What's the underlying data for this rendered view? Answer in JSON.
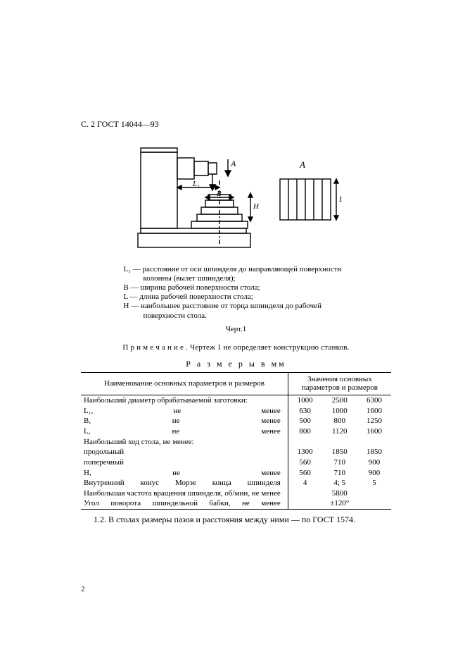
{
  "header": "С. 2 ГОСТ 14044—93",
  "legend": {
    "l1": "L₁ — расстояние от оси шпинделя до направляющей поверхности колонны (вылет шпинделя);",
    "b": "B — ширина рабочей поверхности стола;",
    "l": "L — длина рабочей поверхности стола;",
    "h": "H — наибольшее расстояние от торца шпинделя до рабочей поверхности стола."
  },
  "fig_label": "Черт.1",
  "note": "П р и м е ч а н и е . Чертеж 1 не определяет конструкцию станков.",
  "table_title": "Р а з м е р ы   в мм",
  "table": {
    "head_left": "Наименование основных параметров и размеров",
    "head_right": "Значения основных параметров и размеров",
    "rows": [
      {
        "name": "Наибольший диаметр обрабатываемой заготовки:",
        "v": [
          "1000",
          "2500",
          "6300"
        ],
        "nameclass": "left"
      },
      {
        "name": "L₁, не менее",
        "v": [
          "630",
          "1000",
          "1600"
        ]
      },
      {
        "name": "B, не менее",
        "v": [
          "500",
          "800",
          "1250"
        ]
      },
      {
        "name": "L, не менее",
        "v": [
          "800",
          "1120",
          "1600"
        ]
      },
      {
        "name": "Наибольший ход стола, не менее:",
        "v": [
          "",
          "",
          ""
        ],
        "nameclass": "left"
      },
      {
        "name": "    продольный",
        "v": [
          "1300",
          "1850",
          "1850"
        ],
        "nameclass": "left"
      },
      {
        "name": "    поперечный",
        "v": [
          "560",
          "710",
          "900"
        ],
        "nameclass": "left"
      },
      {
        "name": "H, не менее",
        "v": [
          "560",
          "710",
          "900"
        ]
      },
      {
        "name": "Внутренний конус Морзе конца шпинделя",
        "v": [
          "4",
          "4; 5",
          "5"
        ]
      },
      {
        "name": "Наибольшая частота вращения шпинделя, об/мин, не менее",
        "v": [
          "",
          "5800",
          ""
        ]
      },
      {
        "name": "Угол поворота шпиндельной бабки, не менее",
        "v": [
          "",
          "±120°",
          ""
        ]
      }
    ]
  },
  "para": "1.2. В столах размеры пазов и расстояния между ними — по ГОСТ 1574.",
  "pagenum": "2"
}
